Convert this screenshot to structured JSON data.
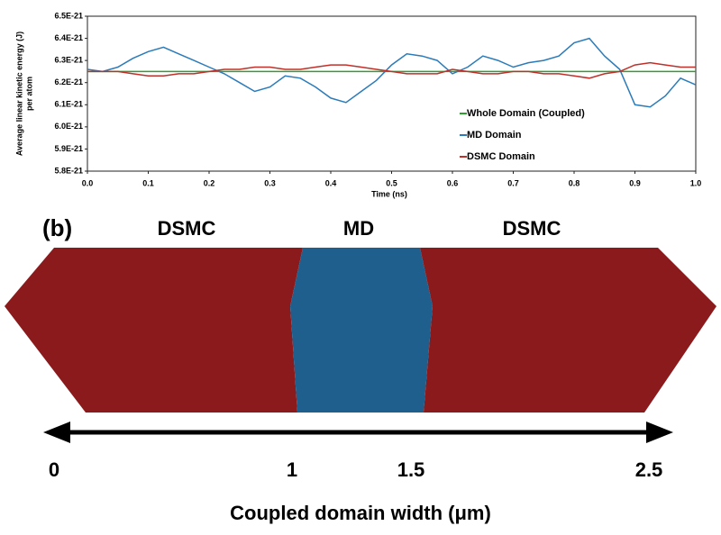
{
  "chart_data": {
    "type": "line",
    "xlabel": "Time (ns)",
    "ylabel": [
      "Average linear kinetic energy (J)",
      "per atom"
    ],
    "x": [
      0,
      0.025,
      0.05,
      0.075,
      0.1,
      0.125,
      0.15,
      0.175,
      0.2,
      0.225,
      0.25,
      0.275,
      0.3,
      0.325,
      0.35,
      0.375,
      0.4,
      0.425,
      0.45,
      0.475,
      0.5,
      0.525,
      0.55,
      0.575,
      0.6,
      0.625,
      0.65,
      0.675,
      0.7,
      0.725,
      0.75,
      0.775,
      0.8,
      0.825,
      0.85,
      0.875,
      0.9,
      0.925,
      0.95,
      0.975,
      1.0
    ],
    "series": [
      {
        "name": "Whole Domain (Coupled)",
        "color": "#2ca02c",
        "values": [
          6.25e-21,
          6.25e-21,
          6.25e-21,
          6.25e-21,
          6.25e-21,
          6.25e-21,
          6.25e-21,
          6.25e-21,
          6.25e-21,
          6.25e-21,
          6.25e-21,
          6.25e-21,
          6.25e-21,
          6.25e-21,
          6.25e-21,
          6.25e-21,
          6.25e-21,
          6.25e-21,
          6.25e-21,
          6.25e-21,
          6.25e-21,
          6.25e-21,
          6.25e-21,
          6.25e-21,
          6.25e-21,
          6.25e-21,
          6.25e-21,
          6.25e-21,
          6.25e-21,
          6.25e-21,
          6.25e-21,
          6.25e-21,
          6.25e-21,
          6.25e-21,
          6.25e-21,
          6.25e-21,
          6.25e-21,
          6.25e-21,
          6.25e-21,
          6.25e-21,
          6.25e-21
        ]
      },
      {
        "name": "MD Domain",
        "color": "#2b7bba",
        "values": [
          6.26e-21,
          6.25e-21,
          6.27e-21,
          6.31e-21,
          6.34e-21,
          6.36e-21,
          6.33e-21,
          6.3e-21,
          6.27e-21,
          6.24e-21,
          6.2e-21,
          6.16e-21,
          6.18e-21,
          6.23e-21,
          6.22e-21,
          6.18e-21,
          6.13e-21,
          6.11e-21,
          6.16e-21,
          6.21e-21,
          6.28e-21,
          6.33e-21,
          6.32e-21,
          6.3e-21,
          6.24e-21,
          6.27e-21,
          6.32e-21,
          6.3e-21,
          6.27e-21,
          6.29e-21,
          6.3e-21,
          6.32e-21,
          6.38e-21,
          6.4e-21,
          6.32e-21,
          6.26e-21,
          6.1e-21,
          6.09e-21,
          6.14e-21,
          6.22e-21,
          6.19e-21
        ]
      },
      {
        "name": "DSMC Domain",
        "color": "#c0302a",
        "values": [
          6.25e-21,
          6.25e-21,
          6.25e-21,
          6.24e-21,
          6.23e-21,
          6.23e-21,
          6.24e-21,
          6.24e-21,
          6.25e-21,
          6.26e-21,
          6.26e-21,
          6.27e-21,
          6.27e-21,
          6.26e-21,
          6.26e-21,
          6.27e-21,
          6.28e-21,
          6.28e-21,
          6.27e-21,
          6.26e-21,
          6.25e-21,
          6.24e-21,
          6.24e-21,
          6.24e-21,
          6.26e-21,
          6.25e-21,
          6.24e-21,
          6.24e-21,
          6.25e-21,
          6.25e-21,
          6.24e-21,
          6.24e-21,
          6.23e-21,
          6.22e-21,
          6.24e-21,
          6.25e-21,
          6.28e-21,
          6.29e-21,
          6.28e-21,
          6.27e-21,
          6.27e-21
        ]
      }
    ],
    "xlim": [
      0,
      1
    ],
    "xticks": [
      {
        "value": 0,
        "label": "0.0"
      },
      0.1,
      0.2,
      0.3,
      0.4,
      0.5,
      0.6,
      0.7,
      0.8,
      0.9,
      {
        "value": 1,
        "label": "1.0"
      }
    ],
    "ylim": [
      5.8e-21,
      6.5e-21
    ],
    "yticks": [
      {
        "value": 5.8e-21,
        "label": "5.8E-21"
      },
      {
        "value": 5.9e-21,
        "label": "5.9E-21"
      },
      {
        "value": 6e-21,
        "label": "6.0E-21"
      },
      {
        "value": 6.1e-21,
        "label": "6.1E-21"
      },
      {
        "value": 6.2e-21,
        "label": "6.2E-21"
      },
      {
        "value": 6.3e-21,
        "label": "6.3E-21"
      },
      {
        "value": 6.4e-21,
        "label": "6.4E-21"
      },
      {
        "value": 6.5e-21,
        "label": "6.5E-21"
      }
    ],
    "grid": false,
    "legend": "right"
  },
  "diagram": {
    "panel": "(b)",
    "regions": [
      "DSMC",
      "MD",
      "DSMC"
    ],
    "scale_ticks": [
      0,
      1,
      1.5,
      2.5
    ],
    "scale_label": "Coupled domain width (μm)"
  }
}
